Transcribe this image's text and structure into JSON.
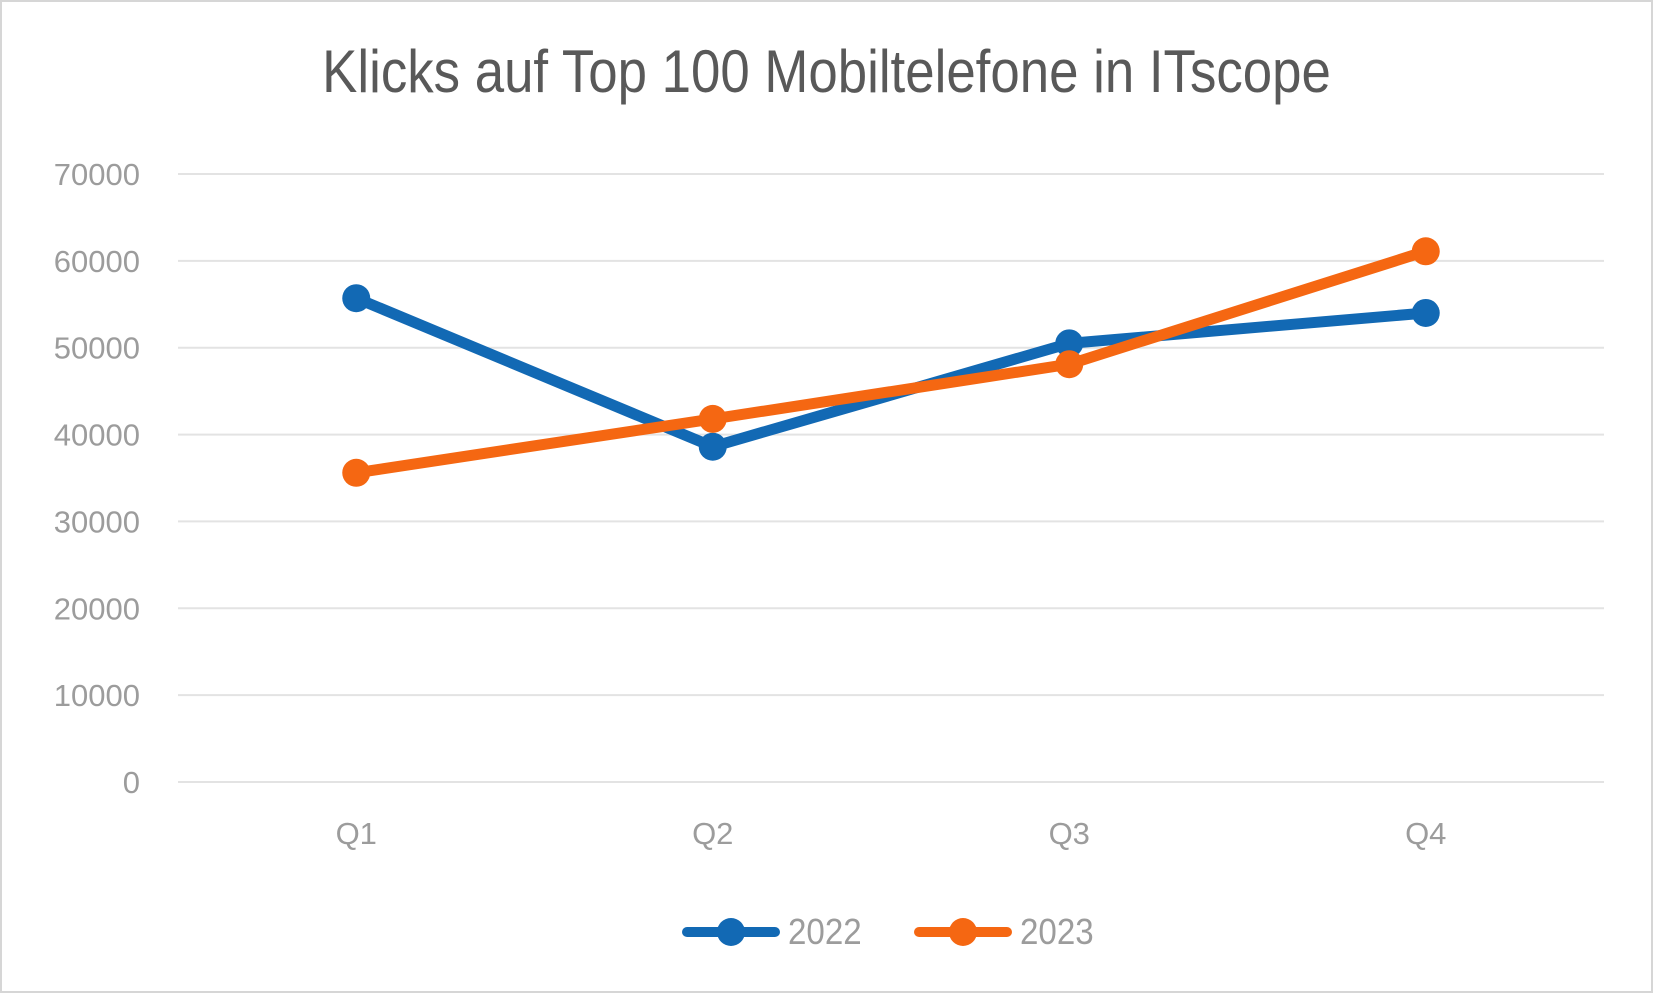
{
  "frame": {
    "background": "#ffffff",
    "border_color": "#d6d6d6"
  },
  "chart_data": {
    "type": "line",
    "title": "Klicks auf Top 100 Mobiltelefone in ITscope",
    "categories": [
      "Q1",
      "Q2",
      "Q3",
      "Q4"
    ],
    "series": [
      {
        "name": "2022",
        "color": "#1269b4",
        "values": [
          55700,
          38600,
          50500,
          54000
        ]
      },
      {
        "name": "2023",
        "color": "#f56712",
        "values": [
          35600,
          41800,
          48100,
          61100
        ]
      }
    ],
    "ylim": [
      0,
      70000
    ],
    "ytick_step": 10000,
    "ytick_labels": [
      "0",
      "10000",
      "20000",
      "30000",
      "40000",
      "50000",
      "60000",
      "70000"
    ],
    "grid": true,
    "legend_position": "bottom",
    "marker": "circle",
    "colors": {
      "title": "#595959",
      "axis_labels": "#9c9c9c",
      "legend_labels": "#9c9c9c",
      "gridline": "#e3e3e3"
    }
  }
}
